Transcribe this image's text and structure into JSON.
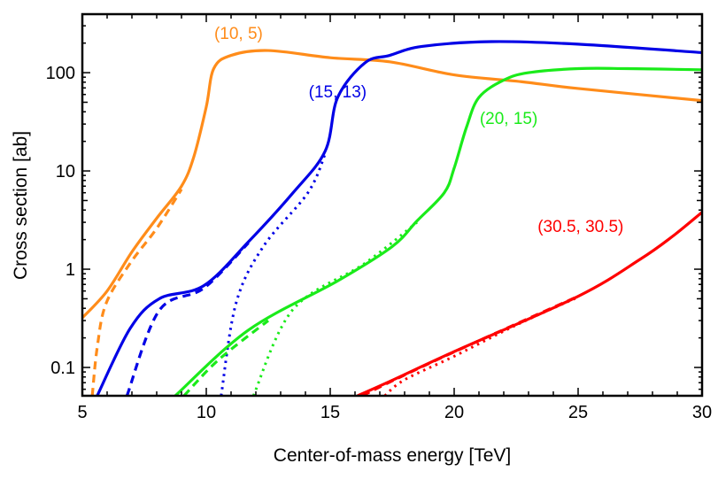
{
  "chart_data": {
    "type": "line",
    "title": "",
    "xlabel": "Center-of-mass energy [TeV]",
    "ylabel": "Cross section [ab]",
    "xlim": [
      5,
      30
    ],
    "ylim": [
      0.0515,
      394
    ],
    "yscale": "log",
    "grid": false,
    "x_ticks": [
      5,
      10,
      15,
      20,
      25,
      30
    ],
    "x_tick_labels": [
      "5",
      "10",
      "15",
      "20",
      "25",
      "30"
    ],
    "y_ticks": [
      0.1,
      1,
      10,
      100
    ],
    "y_tick_labels": [
      "0.1",
      "1",
      "10",
      "100"
    ],
    "series": [
      {
        "group": "(10, 5)",
        "color": "#ff8c1a",
        "style": "solid",
        "x": [
          5,
          6,
          7,
          8,
          9,
          9.5,
          10,
          10.3,
          11,
          12.5,
          15,
          17.4,
          20,
          22.7,
          25,
          30
        ],
        "y": [
          0.32,
          0.6,
          1.5,
          3.3,
          7,
          14,
          45,
          110,
          150,
          168,
          142,
          129,
          95,
          81,
          69,
          52
        ]
      },
      {
        "group": "(10, 5)",
        "color": "#ff8c1a",
        "style": "dashed",
        "x": [
          5.4,
          5.6,
          5.96,
          6.93,
          8,
          9
        ],
        "y": [
          0.0515,
          0.16,
          0.45,
          1.15,
          2.6,
          6.5
        ]
      },
      {
        "group": "(15, 13)",
        "color": "#0000e6",
        "style": "solid",
        "x": [
          5.6,
          6.93,
          8.1,
          9.9,
          11.7,
          13.5,
          14.8,
          15.3,
          16.4,
          17.4,
          18.7,
          21.5,
          25,
          30
        ],
        "y": [
          0.0515,
          0.25,
          0.5,
          0.68,
          1.9,
          6,
          16,
          56,
          126,
          150,
          185,
          207,
          195,
          160
        ]
      },
      {
        "group": "(15, 13)",
        "color": "#0000e6",
        "style": "dashed",
        "x": [
          6.8,
          8.1,
          9.9,
          11.7
        ],
        "y": [
          0.0515,
          0.38,
          0.64,
          1.85
        ]
      },
      {
        "group": "(15, 13)",
        "color": "#0000e6",
        "style": "dotted",
        "x": [
          10.6,
          11.2,
          12.3,
          14.1,
          14.8
        ],
        "y": [
          0.0515,
          0.45,
          1.7,
          6,
          15
        ]
      },
      {
        "group": "(20, 15)",
        "color": "#1aeb1a",
        "style": "solid",
        "x": [
          8.75,
          11.7,
          15.3,
          17.5,
          18.5,
          19.6,
          20,
          20.5,
          21,
          22,
          23,
          25,
          27,
          30
        ],
        "y": [
          0.0515,
          0.24,
          0.76,
          1.7,
          3.1,
          6,
          10.7,
          28,
          56,
          84,
          100,
          110,
          110,
          107
        ]
      },
      {
        "group": "(20, 15)",
        "color": "#1aeb1a",
        "style": "dashed",
        "x": [
          9.1,
          10.5,
          12.5
        ],
        "y": [
          0.0515,
          0.12,
          0.3
        ]
      },
      {
        "group": "(20, 15)",
        "color": "#1aeb1a",
        "style": "dotted",
        "x": [
          11.9,
          13.5,
          16.4,
          18.5
        ],
        "y": [
          0.0515,
          0.39,
          1.15,
          3.0
        ]
      },
      {
        "group": "(30.5, 30.5)",
        "color": "#ff0000",
        "style": "solid",
        "x": [
          16.1,
          17.4,
          20,
          25,
          27.5,
          28.8,
          30
        ],
        "y": [
          0.0515,
          0.072,
          0.145,
          0.53,
          1.26,
          2.15,
          3.8
        ]
      },
      {
        "group": "(30.5, 30.5)",
        "color": "#ff0000",
        "style": "dashed",
        "x": [
          16.3,
          17.4,
          20,
          25
        ],
        "y": [
          0.0515,
          0.071,
          0.144,
          0.53
        ]
      },
      {
        "group": "(30.5, 30.5)",
        "color": "#ff0000",
        "style": "dotted",
        "x": [
          17.2,
          18,
          20,
          22.5,
          25
        ],
        "y": [
          0.0515,
          0.075,
          0.13,
          0.27,
          0.52
        ]
      }
    ],
    "annotations": [
      {
        "text": "(10, 5)",
        "color": "#ff8c1a",
        "x": 11.3,
        "y": 220
      },
      {
        "text": "(15, 13)",
        "color": "#0000e6",
        "x": 15.3,
        "y": 56
      },
      {
        "text": "(20, 15)",
        "color": "#1aeb1a",
        "x": 22.2,
        "y": 30
      },
      {
        "text": "(30.5, 30.5)",
        "color": "#ff0000",
        "x": 25.1,
        "y": 2.4
      }
    ]
  }
}
